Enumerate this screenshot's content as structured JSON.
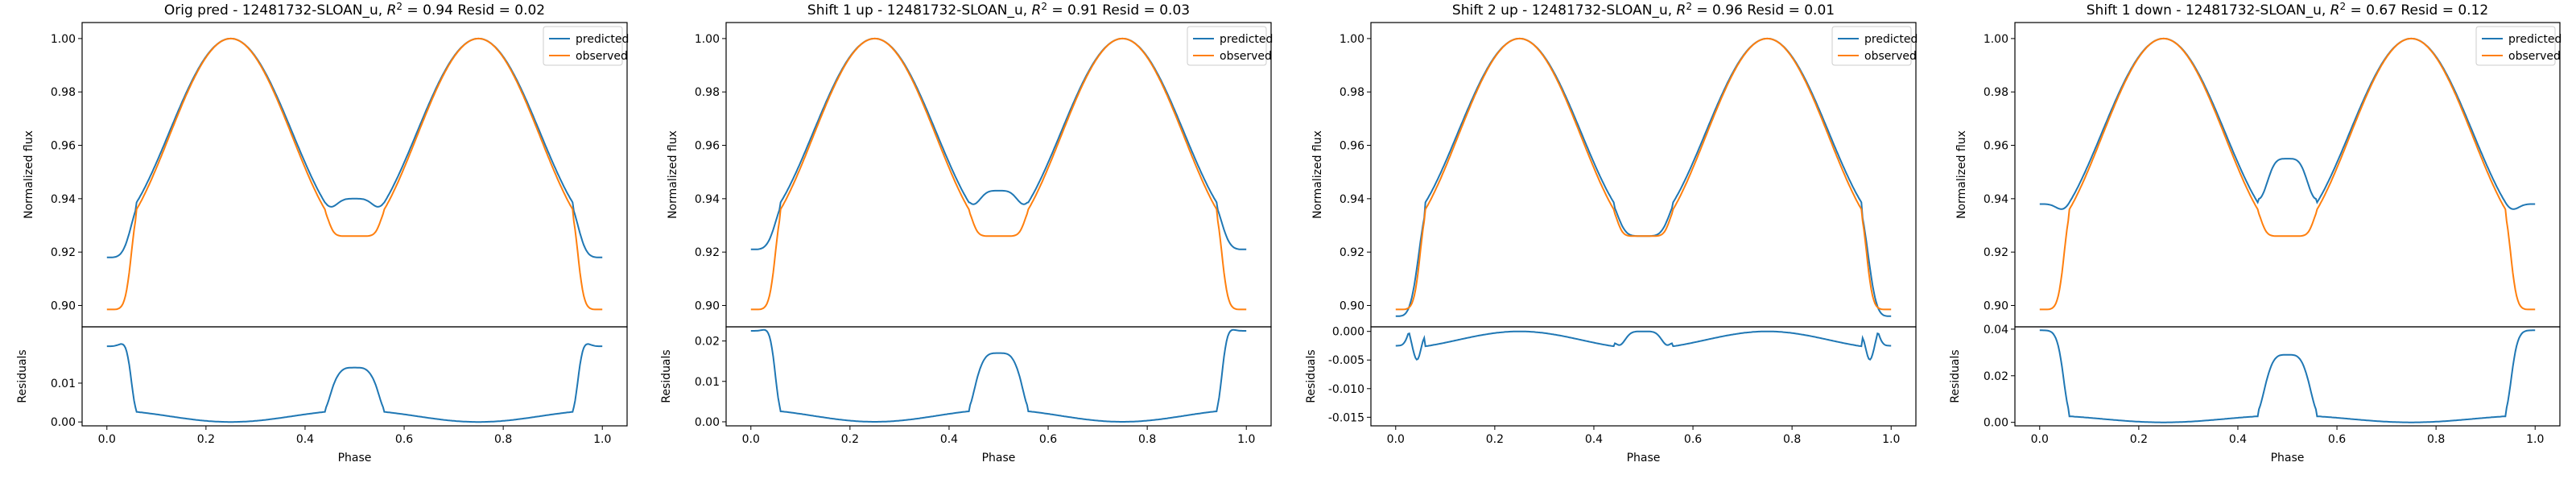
{
  "figure": {
    "colors": {
      "predicted": "#1f77b4",
      "observed": "#ff7f0e"
    }
  },
  "chart_data": [
    {
      "type": "line",
      "title": "Orig pred - 12481732-SLOAN_u, R2 = 0.94 Resid = 0.02",
      "title_prefix": "Orig pred - 12481732-SLOAN_u, ",
      "r2": "0.94",
      "resid": "0.02",
      "ylabel": "Normalized flux",
      "resid_ylabel": "Residuals",
      "xlabel": "Phase",
      "legend": [
        "predicted",
        "observed"
      ],
      "legend_position": "top-right",
      "xlim": [
        -0.05,
        1.05
      ],
      "ylim": [
        0.892,
        1.006
      ],
      "yticks": [
        "0.90",
        "0.92",
        "0.94",
        "0.96",
        "0.98",
        "1.00"
      ],
      "xticks": [
        "0.0",
        "0.2",
        "0.4",
        "0.6",
        "0.8",
        "1.0"
      ],
      "resid_ylim": [
        -0.001,
        0.0245
      ],
      "resid_yticks": [
        "0.00",
        "0.01"
      ],
      "predicted_trough": 0.94,
      "predicted_edge": 0.918
    },
    {
      "type": "line",
      "title": "Shift 1 up - 12481732-SLOAN_u, R2 = 0.91 Resid = 0.03",
      "title_prefix": "Shift 1 up - 12481732-SLOAN_u, ",
      "r2": "0.91",
      "resid": "0.03",
      "ylabel": "Normalized flux",
      "resid_ylabel": "Residuals",
      "xlabel": "Phase",
      "legend": [
        "predicted",
        "observed"
      ],
      "legend_position": "top-right",
      "xlim": [
        -0.05,
        1.05
      ],
      "ylim": [
        0.892,
        1.006
      ],
      "yticks": [
        "0.90",
        "0.92",
        "0.94",
        "0.96",
        "0.98",
        "1.00"
      ],
      "xticks": [
        "0.0",
        "0.2",
        "0.4",
        "0.6",
        "0.8",
        "1.0"
      ],
      "resid_ylim": [
        -0.001,
        0.0235
      ],
      "resid_yticks": [
        "0.00",
        "0.01",
        "0.02"
      ],
      "predicted_trough": 0.943,
      "predicted_edge": 0.921
    },
    {
      "type": "line",
      "title": "Shift 2 up - 12481732-SLOAN_u, R2 = 0.96 Resid = 0.01",
      "title_prefix": "Shift 2 up - 12481732-SLOAN_u, ",
      "r2": "0.96",
      "resid": "0.01",
      "ylabel": "Normalized flux",
      "resid_ylabel": "Residuals",
      "xlabel": "Phase",
      "legend": [
        "predicted",
        "observed"
      ],
      "legend_position": "top-right",
      "xlim": [
        -0.05,
        1.05
      ],
      "ylim": [
        0.892,
        1.006
      ],
      "yticks": [
        "0.90",
        "0.92",
        "0.94",
        "0.96",
        "0.98",
        "1.00"
      ],
      "xticks": [
        "0.0",
        "0.2",
        "0.4",
        "0.6",
        "0.8",
        "1.0"
      ],
      "resid_ylim": [
        -0.0165,
        0.0008
      ],
      "resid_yticks": [
        "0.000",
        "-0.005",
        "-0.010",
        "-0.015"
      ],
      "predicted_trough": 0.926,
      "predicted_edge": 0.896
    },
    {
      "type": "line",
      "title": "Shift 1 down - 12481732-SLOAN_u, R2 = 0.67 Resid = 0.12",
      "title_prefix": "Shift 1 down - 12481732-SLOAN_u, ",
      "r2": "0.67",
      "resid": "0.12",
      "ylabel": "Normalized flux",
      "resid_ylabel": "Residuals",
      "xlabel": "Phase",
      "legend": [
        "predicted",
        "observed"
      ],
      "legend_position": "top-right",
      "xlim": [
        -0.05,
        1.05
      ],
      "ylim": [
        0.892,
        1.006
      ],
      "yticks": [
        "0.90",
        "0.92",
        "0.94",
        "0.96",
        "0.98",
        "1.00"
      ],
      "xticks": [
        "0.0",
        "0.2",
        "0.4",
        "0.6",
        "0.8",
        "1.0"
      ],
      "resid_ylim": [
        -0.0015,
        0.041
      ],
      "resid_yticks": [
        "0.00",
        "0.02",
        "0.04"
      ],
      "predicted_trough": 0.955,
      "predicted_edge": 0.938
    }
  ]
}
